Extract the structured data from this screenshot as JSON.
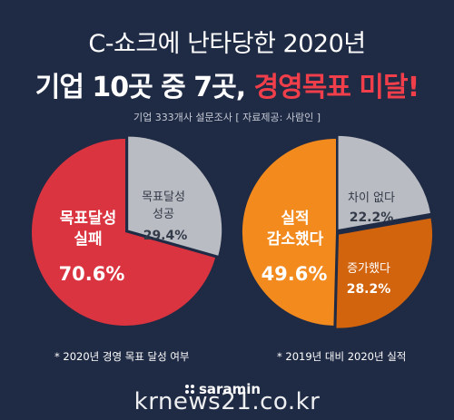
{
  "title_line1": "C-쇼크에 난타당한 2020년",
  "title_line2_part1": "기업 10곳 중 7곳, ",
  "title_line2_part2": "경영목표 미달!",
  "source": "기업 333개사 설문조사 [ 자료제공: 사람인 ]",
  "logo_text": "saramin",
  "watermark": "krnews21.co.kr",
  "colors": {
    "background": "#1f2a44",
    "red": "#d9343f",
    "grey": "#b9bcc2",
    "orange_light": "#f28a1e",
    "orange_dark": "#d2640e",
    "title_red": "#f03e4a"
  },
  "chart_data": [
    {
      "type": "pie",
      "note": "* 2020년 경영 목표 달성 여부",
      "slices": [
        {
          "label_lines": [
            "목표달성",
            "실패"
          ],
          "value": 70.6,
          "value_label": "70.6%",
          "color": "#d9343f"
        },
        {
          "label_lines": [
            "목표달성",
            "성공"
          ],
          "value": 29.4,
          "value_label": "29.4%",
          "color": "#b9bcc2"
        }
      ]
    },
    {
      "type": "pie",
      "note": "* 2019년 대비 2020년 실적",
      "slices": [
        {
          "label_lines": [
            "실적",
            "감소했다"
          ],
          "value": 49.6,
          "value_label": "49.6%",
          "color": "#f28a1e"
        },
        {
          "label_lines": [
            "차이 없다"
          ],
          "value": 22.2,
          "value_label": "22.2%",
          "color": "#b9bcc2"
        },
        {
          "label_lines": [
            "증가했다"
          ],
          "value": 28.2,
          "value_label": "28.2%",
          "color": "#d2640e"
        }
      ]
    }
  ]
}
